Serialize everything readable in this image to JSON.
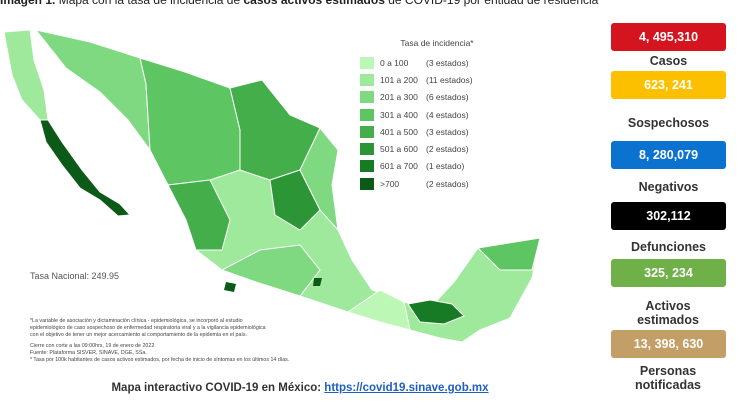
{
  "header": {
    "title_parts": [
      {
        "text": "Imagen 1.",
        "bold": true
      },
      {
        "text": " Mapa con la tasa de incidencia de ",
        "bold": false
      },
      {
        "text": "casos activos estimados",
        "bold": true
      },
      {
        "text": " de COVID-19 por entidad de residencia",
        "bold": false
      }
    ]
  },
  "legend": {
    "title": "Tasa de incidencia*",
    "rows": [
      {
        "label": "0 a 100",
        "count": "(3 estados)",
        "color": "#bdf7b5"
      },
      {
        "label": "101 a 200",
        "count": "(11 estados)",
        "color": "#9ee99b"
      },
      {
        "label": "201 a 300",
        "count": "(6 estados)",
        "color": "#7fd981"
      },
      {
        "label": "301 a 400",
        "count": "(4 estados)",
        "color": "#5ec563"
      },
      {
        "label": "401 a 500",
        "count": "(3 estados)",
        "color": "#43ae4a"
      },
      {
        "label": "501 a 600",
        "count": "(2 estados)",
        "color": "#2c9636"
      },
      {
        "label": "601 a 700",
        "count": "(1 estado)",
        "color": "#177a25"
      },
      {
        "label": ">700",
        "count": "(2 estados)",
        "color": "#0b5a18"
      }
    ]
  },
  "national_rate": "Tasa Nacional: 249.95",
  "notes": [
    "*La variable de asociación y dictaminación clínica - epidemiológica, se incorporó al estudio",
    "epidemiológico de caso sospechoso de enfermedad respiratoria viral y a la vigilancia epidemiológica",
    "con el objetivo de tener un mejor acercamiento al comportamiento de la epidemia en el país.",
    "Cierre con corte a las 09:00hrs, 19 de enero de 2022",
    "Fuente: Plataforma SISVER, SINAVE, DGE, SSa.",
    "* Tasa por 100k habitantes de casos activos estimados, por fecha de inicio de síntomas en los últimos 14 días."
  ],
  "footer": {
    "text": "Mapa interactivo COVID-19 en México:",
    "link": "https://covid19.sinave.gob.mx"
  },
  "stats": [
    {
      "value": "4, 495,310",
      "label": "Casos",
      "color": "#d4151f",
      "text_color": "#ffffff"
    },
    {
      "value": "623, 241",
      "label": "Sospechosos",
      "color": "#fcc000",
      "text_color": "#ffffff"
    },
    {
      "value": "8, 280,079",
      "label": "Negativos",
      "color": "#0b72d0",
      "text_color": "#ffffff"
    },
    {
      "value": "302,112",
      "label": "Defunciones",
      "color": "#000000",
      "text_color": "#ffffff"
    },
    {
      "value": "325, 234",
      "label": "Activos estimados",
      "color": "#6fb048",
      "text_color": "#ffffff"
    },
    {
      "value": "13, 398, 630",
      "label": "Personas notificadas",
      "color": "#c39e66",
      "text_color": "#ffffff"
    }
  ]
}
